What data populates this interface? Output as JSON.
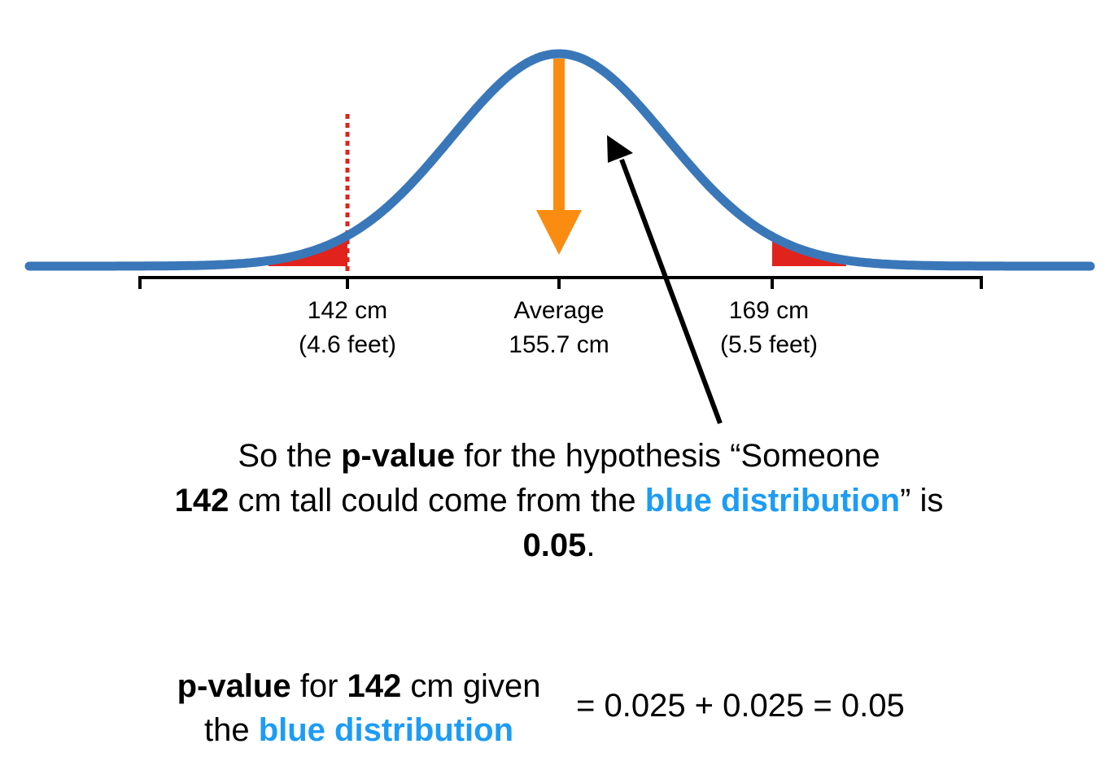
{
  "diagram": {
    "colors": {
      "curve": "#3a77b8",
      "tail_fill": "#e0231c",
      "cutoff_line": "#e0231c",
      "mean_arrow": "#fb8c12",
      "pointer_arrow": "#000000",
      "axis": "#000000",
      "highlight": "#1c9cf6"
    },
    "ticks": [
      {
        "value_line1": "142 cm",
        "value_line2": "(4.6 feet)"
      },
      {
        "value_line1": "Average",
        "value_line2": "155.7 cm"
      },
      {
        "value_line1": "169 cm",
        "value_line2": "(5.5 feet)"
      }
    ],
    "caption": {
      "t1": "So the ",
      "t2": "p-value",
      "t3": " for the hypothesis “Someone ",
      "t4": "142",
      "t5": " cm tall could come from the ",
      "t6": "blue distribution",
      "t7": "” is ",
      "t8": "0.05",
      "t9": "."
    },
    "formula": {
      "f1": "p-value",
      "f2": " for ",
      "f3": "142",
      "f4": " cm given",
      "f5": "the ",
      "f6": "blue distribution",
      "rhs": "= 0.025 + 0.025 = 0.05"
    }
  }
}
